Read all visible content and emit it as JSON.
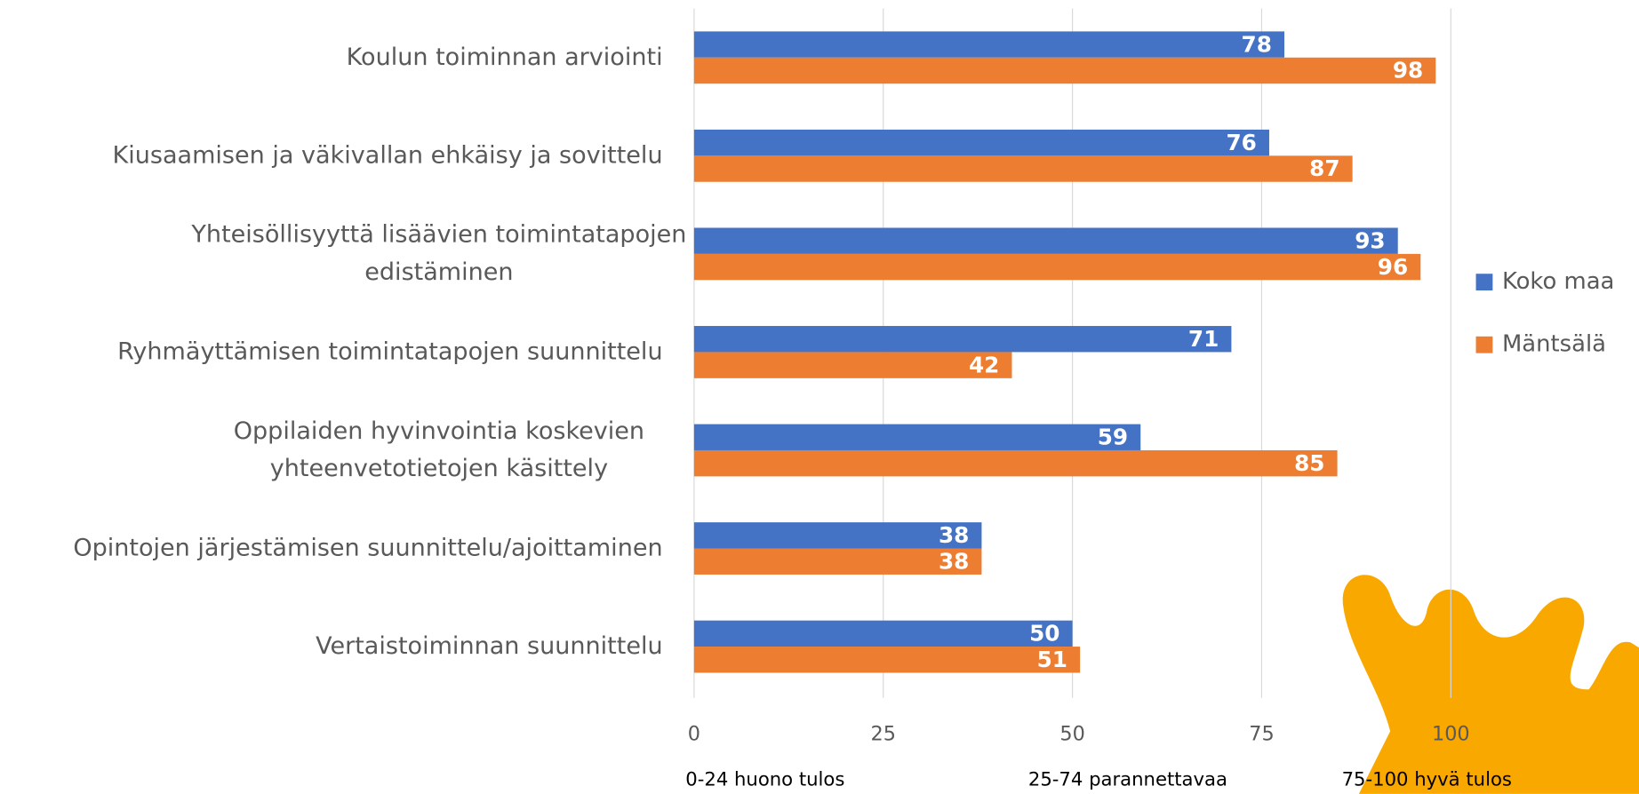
{
  "chart_data": {
    "type": "bar",
    "orientation": "horizontal",
    "categories": [
      "Koulun toiminnan arviointi",
      "Kiusaamisen ja väkivallan ehkäisy ja sovittelu",
      "Yhteisöllisyyttä lisäävien toimintatapojen\nedistäminen",
      "Ryhmäyttämisen toimintatapojen suunnittelu",
      "Oppilaiden hyvinvointia koskevien\nyhteenvetotietojen käsittely",
      "Opintojen järjestämisen suunnittelu/ajoittaminen",
      "Vertaistoiminnan suunnittelu"
    ],
    "series": [
      {
        "name": "Koko maa",
        "color": "#4472c4",
        "values": [
          78,
          76,
          93,
          71,
          59,
          38,
          50
        ]
      },
      {
        "name": "Mäntsälä",
        "color": "#ed7d31",
        "values": [
          98,
          87,
          96,
          42,
          85,
          38,
          51
        ]
      }
    ],
    "xlim": [
      0,
      100
    ],
    "xticks": [
      0,
      25,
      50,
      75,
      100
    ],
    "grid": true,
    "legend": "right",
    "annotations": [
      "0-24 huono tulos",
      "25-74 parannettavaa",
      "75-100  hyvä tulos"
    ]
  }
}
